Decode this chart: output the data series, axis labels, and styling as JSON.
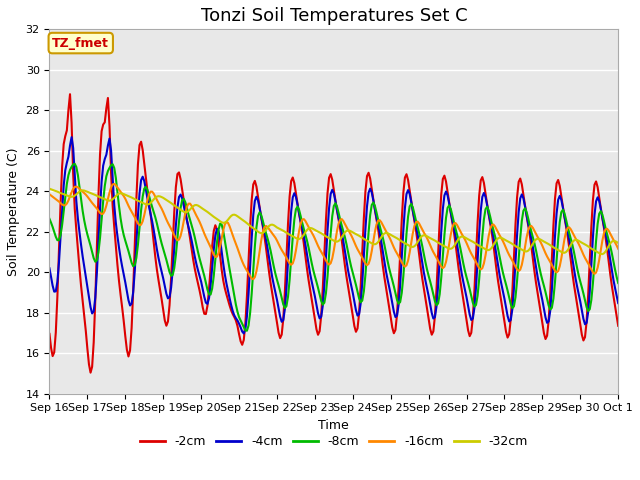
{
  "title": "Tonzi Soil Temperatures Set C",
  "xlabel": "Time",
  "ylabel": "Soil Temperature (C)",
  "ylim": [
    14,
    32
  ],
  "legend_labels": [
    "-2cm",
    "-4cm",
    "-8cm",
    "-16cm",
    "-32cm"
  ],
  "legend_colors": [
    "#dd0000",
    "#0000cc",
    "#00bb00",
    "#ff8800",
    "#cccc00"
  ],
  "line_widths": [
    1.5,
    1.5,
    1.5,
    1.5,
    1.5
  ],
  "annotation_text": "TZ_fmet",
  "annotation_color": "#cc0000",
  "annotation_bg": "#ffffcc",
  "annotation_border": "#cc9900",
  "plot_bg_color": "#e8e8e8",
  "grid_color": "#ffffff",
  "title_fontsize": 13,
  "axis_fontsize": 9,
  "tick_fontsize": 8,
  "xtick_labels": [
    "Sep 16",
    "Sep 17",
    "Sep 18",
    "Sep 19",
    "Sep 20",
    "Sep 21",
    "Sep 22",
    "Sep 23",
    "Sep 24",
    "Sep 25",
    "Sep 26",
    "Sep 27",
    "Sep 28",
    "Sep 29",
    "Sep 30",
    "Oct 1"
  ]
}
